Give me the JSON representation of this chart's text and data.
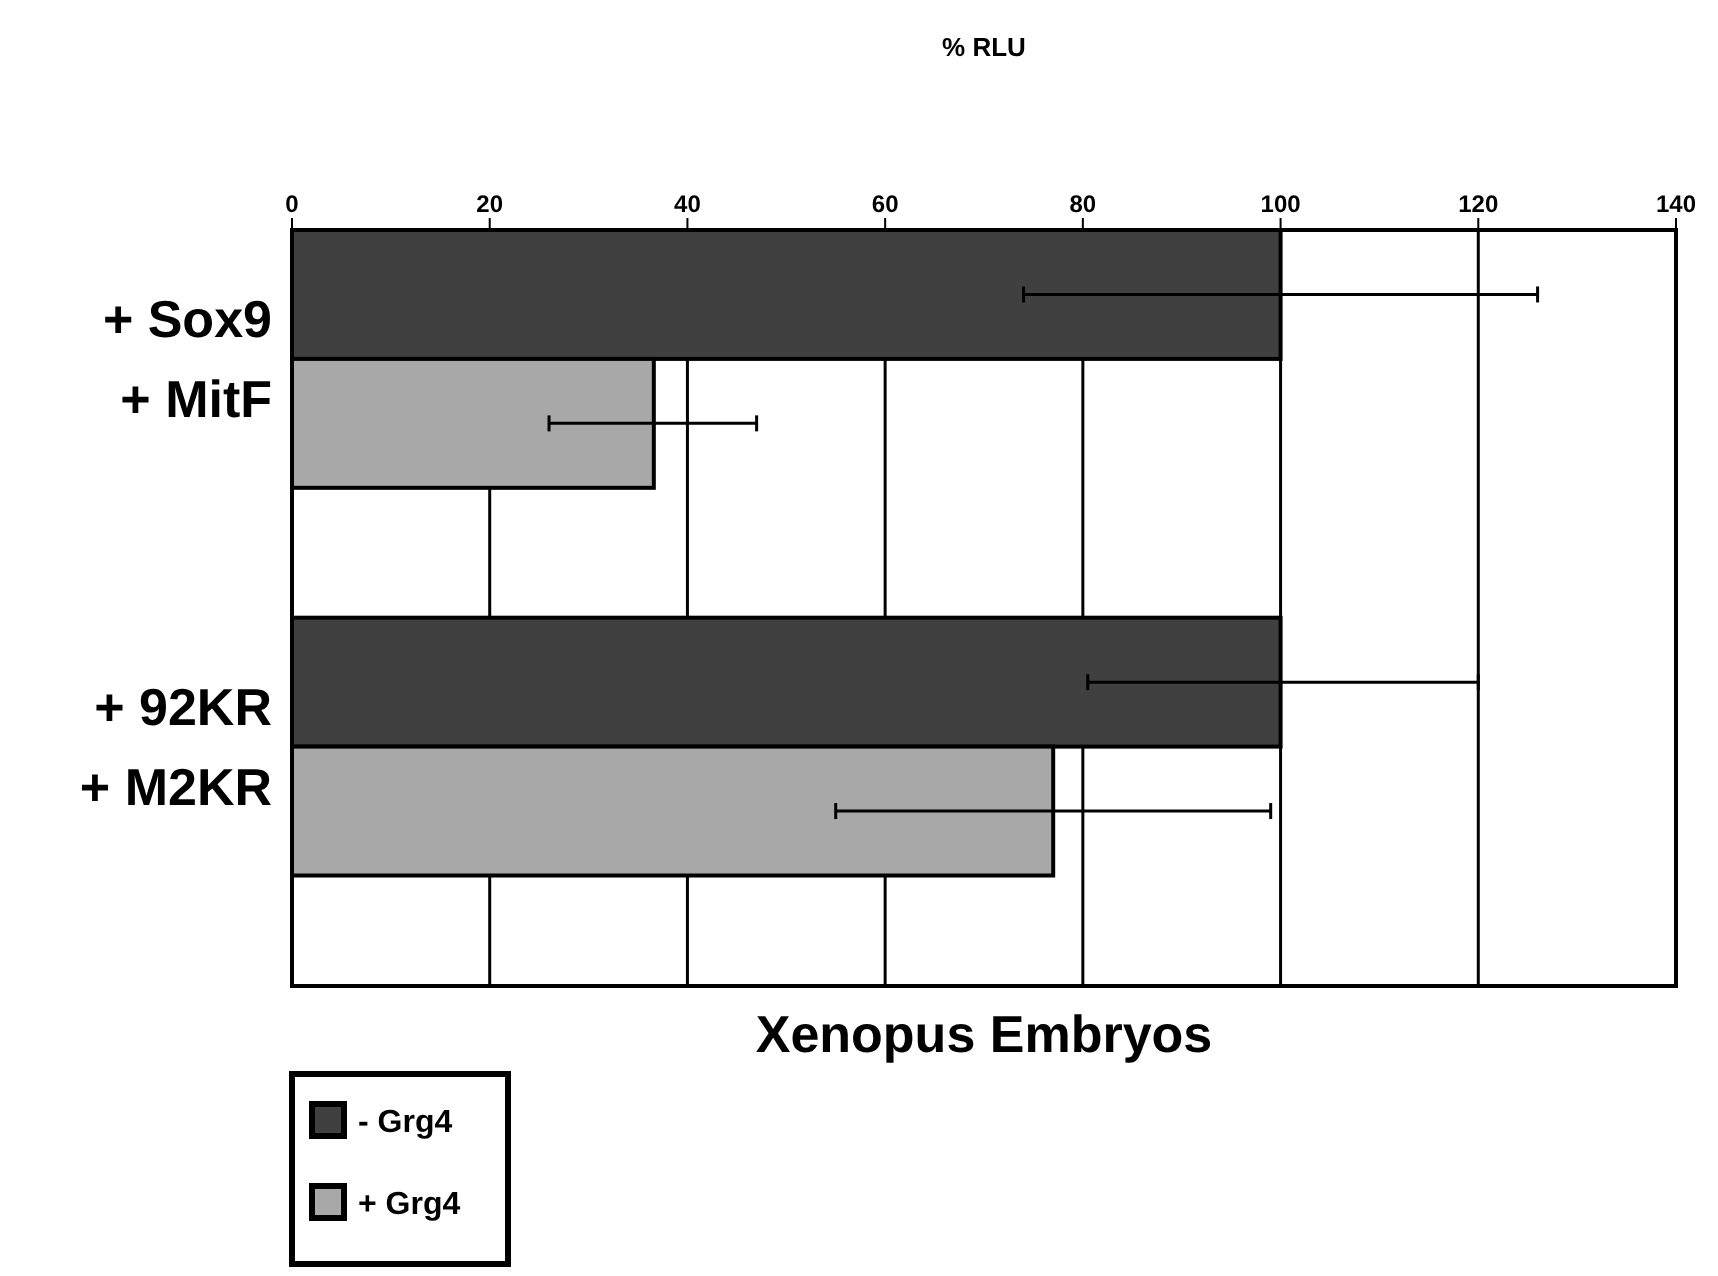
{
  "chart_data": {
    "type": "bar",
    "orientation": "horizontal",
    "title": "Xenopus Embryos",
    "xlabel": "% RLU",
    "categories": [
      "+ Sox9\n+ MitF",
      "+ 92KR\n+ M2KR"
    ],
    "series": [
      {
        "name": "- Grg4",
        "color": "#404040",
        "values": [
          100,
          100
        ],
        "errors": [
          [
            74,
            126
          ],
          [
            80.5,
            120
          ]
        ]
      },
      {
        "name": "+ Grg4",
        "color": "#a8a8a8",
        "values": [
          36.6,
          77
        ],
        "errors": [
          [
            26,
            47
          ],
          [
            55,
            99
          ]
        ]
      }
    ],
    "xlim": [
      0,
      140
    ],
    "xticks": [
      0,
      20,
      40,
      60,
      80,
      100,
      120,
      140
    ],
    "grid": "x",
    "legend": "bottom left"
  }
}
